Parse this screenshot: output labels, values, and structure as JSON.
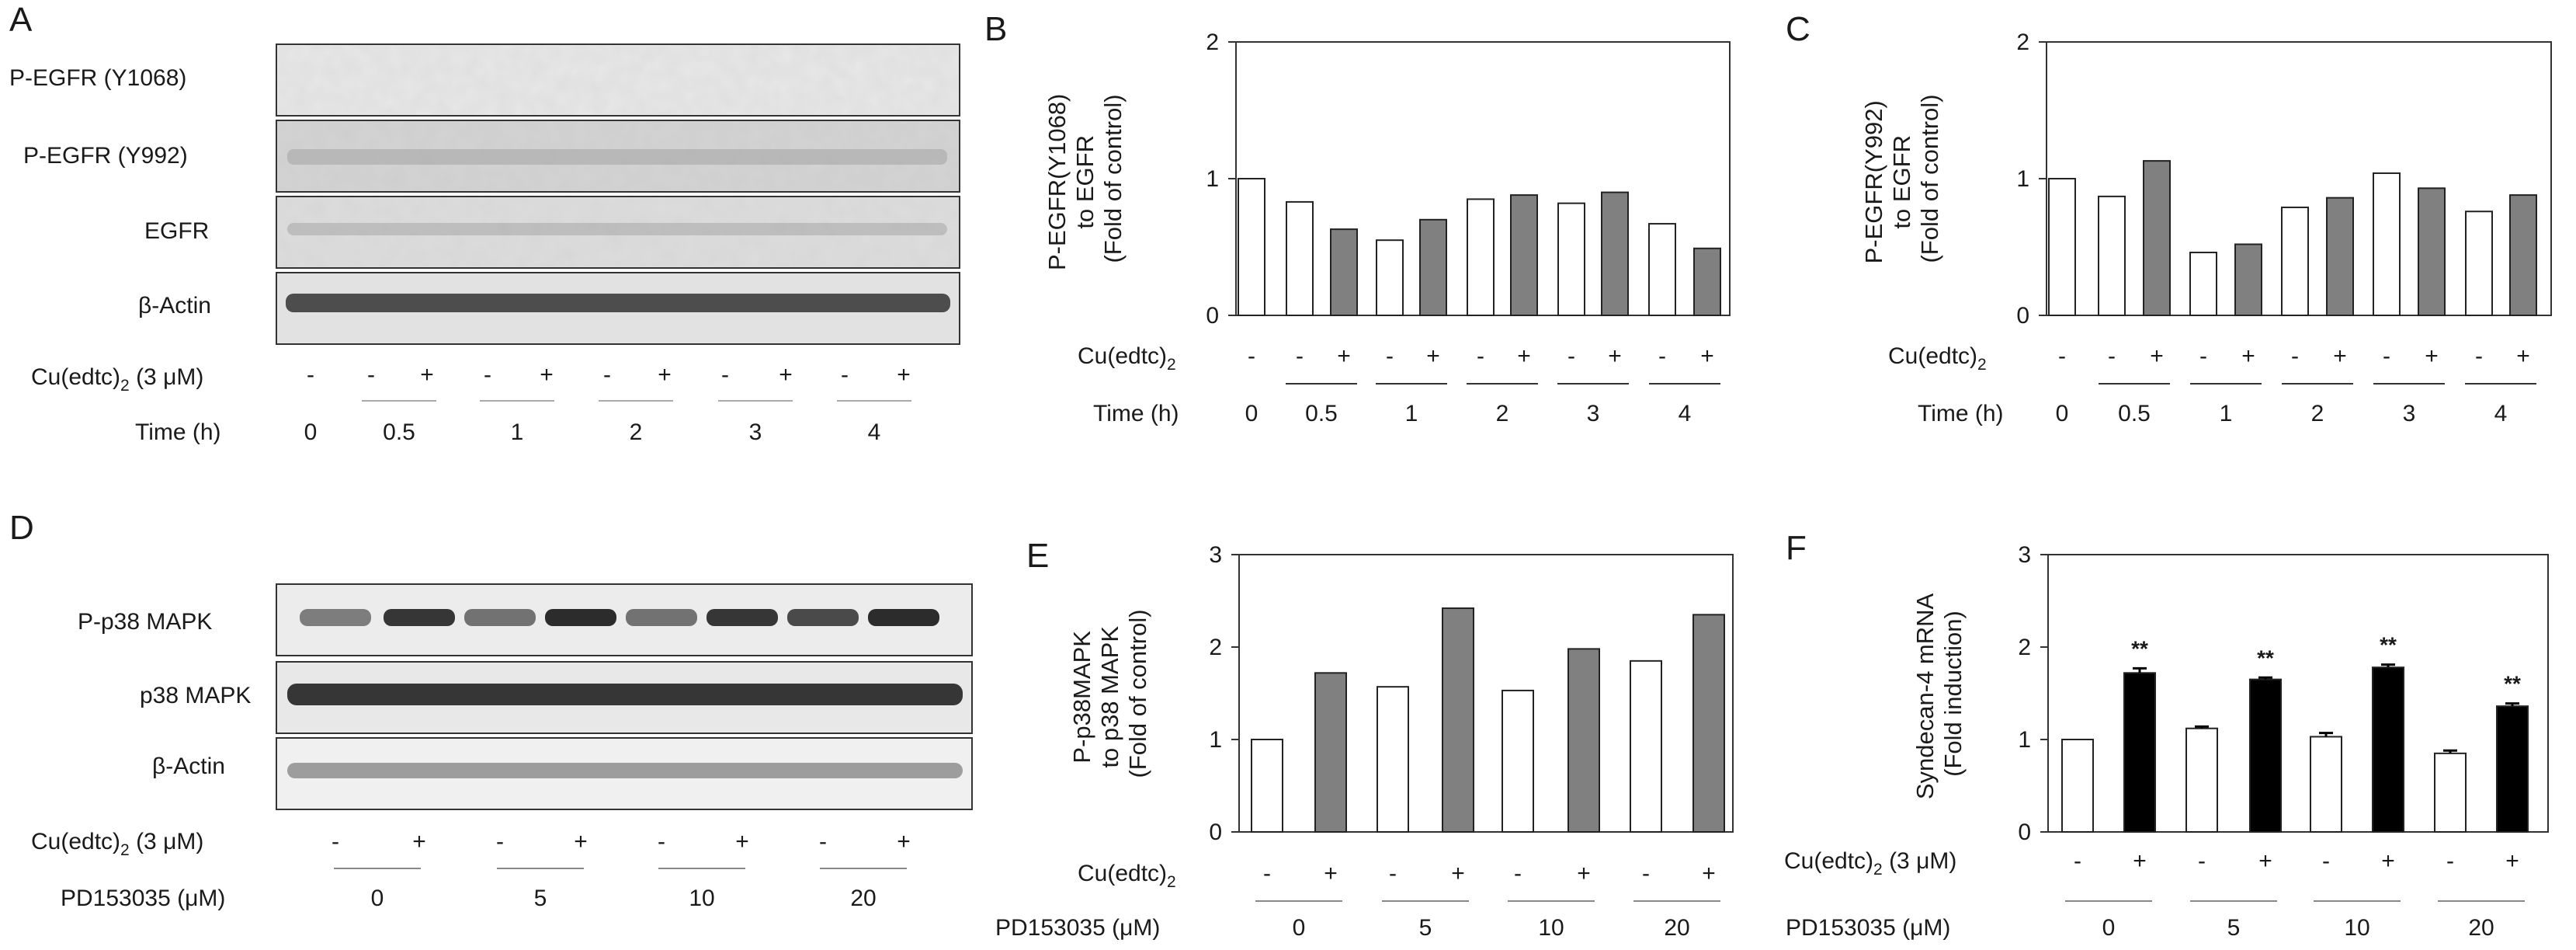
{
  "panels": {
    "A": {
      "letter": "A",
      "rows": [
        "P-EGFR (Y1068)",
        "P-EGFR (Y992)",
        "EGFR",
        "β-Actin"
      ],
      "treat_prefix": "Cu(edtc)",
      "treat_sub": "2",
      "treat_suffix": " (3 μM)",
      "signs": [
        "-",
        "-",
        "+",
        "-",
        "+",
        "-",
        "+",
        "-",
        "+",
        "-",
        "+"
      ],
      "time_label": "Time (h)",
      "times": [
        "0",
        "0.5",
        "1",
        "2",
        "3",
        "4"
      ]
    },
    "B": {
      "letter": "B",
      "ylabel": [
        "P-EGFR(Y1068)",
        "to EGFR",
        "(Fold of control)"
      ],
      "treat_prefix": "Cu(edtc)",
      "treat_sub": "2",
      "signs": [
        "-",
        "-",
        "+",
        "-",
        "+",
        "-",
        "+",
        "-",
        "+",
        "-",
        "+"
      ],
      "time_label": "Time (h)",
      "times": [
        "0",
        "0.5",
        "1",
        "2",
        "3",
        "4"
      ]
    },
    "C": {
      "letter": "C",
      "ylabel": [
        "P-EGFR(Y992)",
        "to EGFR",
        "(Fold of control)"
      ],
      "treat_prefix": "Cu(edtc)",
      "treat_sub": "2",
      "signs": [
        "-",
        "-",
        "+",
        "-",
        "+",
        "-",
        "+",
        "-",
        "+",
        "-",
        "+"
      ],
      "time_label": "Time (h)",
      "times": [
        "0",
        "0.5",
        "1",
        "2",
        "3",
        "4"
      ]
    },
    "D": {
      "letter": "D",
      "rows": [
        "P-p38 MAPK",
        "p38 MAPK",
        "β-Actin"
      ],
      "treat_prefix": "Cu(edtc)",
      "treat_sub": "2",
      "treat_suffix": " (3 μM)",
      "signs": [
        "-",
        "+",
        "-",
        "+",
        "-",
        "+",
        "-",
        "+"
      ],
      "dose_label": "PD153035 (μM)",
      "doses": [
        "0",
        "5",
        "10",
        "20"
      ]
    },
    "E": {
      "letter": "E",
      "ylabel": [
        "P-p38MAPK",
        "to p38 MAPK",
        "(Fold of control)"
      ],
      "treat_prefix": "Cu(edtc)",
      "treat_sub": "2",
      "signs": [
        "-",
        "+",
        "-",
        "+",
        "-",
        "+",
        "-",
        "+"
      ],
      "dose_label": "PD153035 (μM)",
      "doses": [
        "0",
        "5",
        "10",
        "20"
      ]
    },
    "F": {
      "letter": "F",
      "ylabel": [
        "Syndecan-4 mRNA",
        "(Fold induction)"
      ],
      "treat_prefix": "Cu(edtc)",
      "treat_sub": "2",
      "treat_suffix": " (3 μM)",
      "signs": [
        "-",
        "+",
        "-",
        "+",
        "-",
        "+",
        "-",
        "+"
      ],
      "dose_label": "PD153035 (μM)",
      "doses": [
        "0",
        "5",
        "10",
        "20"
      ],
      "sig_label": "**"
    }
  },
  "chart_data": [
    {
      "panel": "B",
      "type": "bar",
      "ylim": [
        0,
        2
      ],
      "yticks": [
        0,
        1,
        2
      ],
      "values": [
        1.0,
        0.83,
        0.63,
        0.55,
        0.7,
        0.85,
        0.88,
        0.82,
        0.9,
        0.67,
        0.49
      ],
      "treated": [
        false,
        false,
        true,
        false,
        true,
        false,
        true,
        false,
        true,
        false,
        true
      ],
      "fill_untreated": "#ffffff",
      "fill_treated": "#808080"
    },
    {
      "panel": "C",
      "type": "bar",
      "ylim": [
        0,
        2
      ],
      "yticks": [
        0,
        1,
        2
      ],
      "values": [
        1.0,
        0.87,
        1.13,
        0.46,
        0.52,
        0.79,
        0.86,
        1.04,
        0.93,
        0.76,
        0.88
      ],
      "treated": [
        false,
        false,
        true,
        false,
        true,
        false,
        true,
        false,
        true,
        false,
        true
      ],
      "fill_untreated": "#ffffff",
      "fill_treated": "#808080"
    },
    {
      "panel": "E",
      "type": "bar",
      "ylim": [
        0,
        3
      ],
      "yticks": [
        0,
        1,
        2,
        3
      ],
      "values": [
        1.0,
        1.72,
        1.57,
        2.42,
        1.53,
        1.98,
        1.85,
        2.35
      ],
      "treated": [
        false,
        true,
        false,
        true,
        false,
        true,
        false,
        true
      ],
      "fill_untreated": "#ffffff",
      "fill_treated": "#808080"
    },
    {
      "panel": "F",
      "type": "bar",
      "ylim": [
        0,
        3
      ],
      "yticks": [
        0,
        1,
        2,
        3
      ],
      "values": [
        1.0,
        1.72,
        1.12,
        1.65,
        1.03,
        1.78,
        0.85,
        1.36
      ],
      "errors": [
        0,
        0.05,
        0.02,
        0.02,
        0.04,
        0.03,
        0.03,
        0.03
      ],
      "significant": [
        false,
        true,
        false,
        true,
        false,
        true,
        false,
        true
      ],
      "treated": [
        false,
        true,
        false,
        true,
        false,
        true,
        false,
        true
      ],
      "fill_untreated": "#ffffff",
      "fill_treated": "#000000"
    }
  ]
}
